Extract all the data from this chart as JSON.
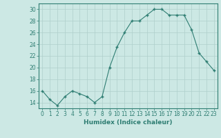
{
  "xlabel": "Humidex (Indice chaleur)",
  "ylabel": "",
  "x": [
    0,
    1,
    2,
    3,
    4,
    5,
    6,
    7,
    8,
    9,
    10,
    11,
    12,
    13,
    14,
    15,
    16,
    17,
    18,
    19,
    20,
    21,
    22,
    23
  ],
  "y": [
    16,
    14.5,
    13.5,
    15,
    16,
    15.5,
    15,
    14,
    15,
    20,
    23.5,
    26,
    28,
    28,
    29,
    30,
    30,
    29,
    29,
    29,
    26.5,
    22.5,
    21,
    19.5
  ],
  "line_color": "#2e7d72",
  "marker_color": "#2e7d72",
  "bg_color": "#cce8e4",
  "grid_color": "#aecfcb",
  "tick_color": "#2e7d72",
  "label_color": "#2e7d72",
  "axis_color": "#2e7d72",
  "ylim": [
    13,
    31
  ],
  "yticks": [
    14,
    16,
    18,
    20,
    22,
    24,
    26,
    28,
    30
  ],
  "xlim": [
    -0.5,
    23.5
  ],
  "xticks": [
    0,
    1,
    2,
    3,
    4,
    5,
    6,
    7,
    8,
    9,
    10,
    11,
    12,
    13,
    14,
    15,
    16,
    17,
    18,
    19,
    20,
    21,
    22,
    23
  ],
  "label_fontsize": 6.5,
  "tick_fontsize": 5.5
}
